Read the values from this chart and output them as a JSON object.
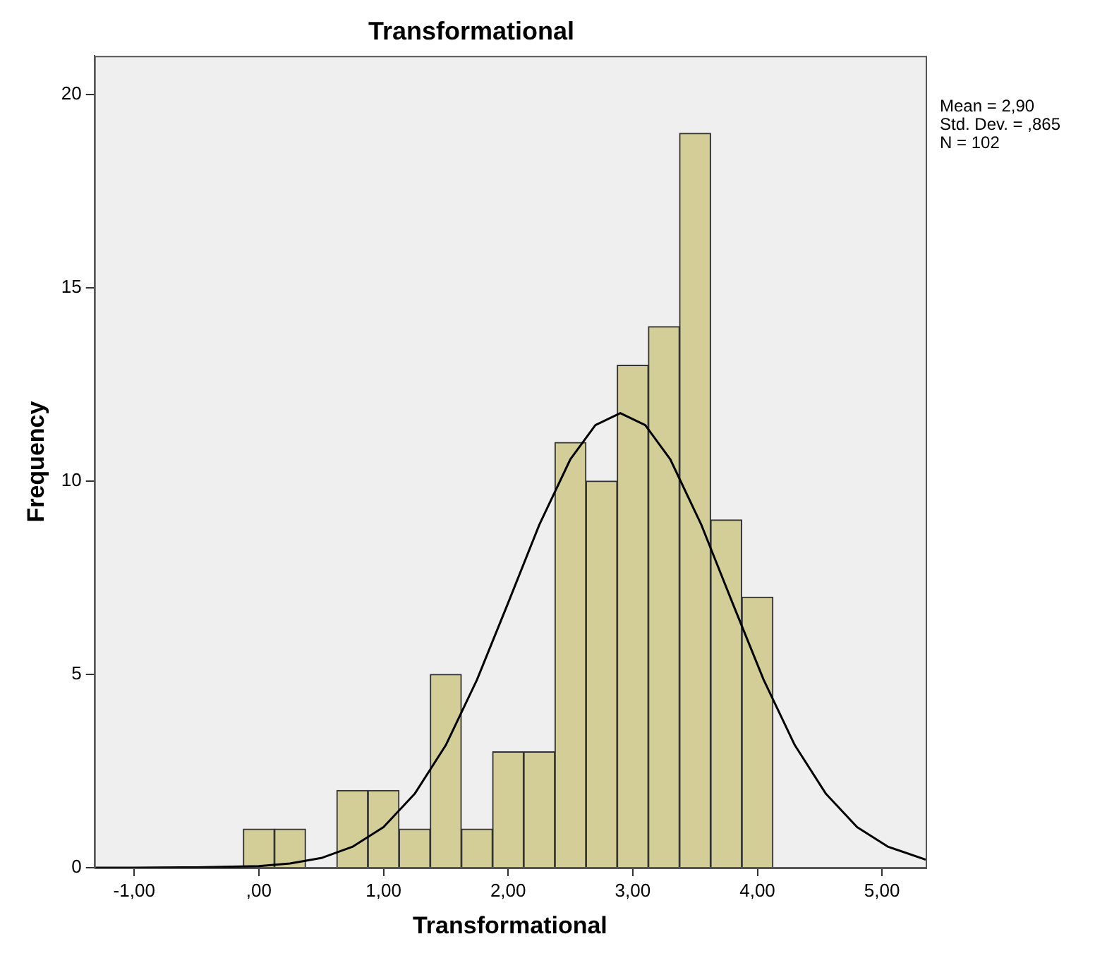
{
  "chart_data": {
    "type": "histogram",
    "title": "Transformational",
    "xlabel": "Transformational",
    "ylabel": "Frequency",
    "bins": [
      -0.125,
      0.125,
      0.375,
      0.625,
      0.875,
      1.125,
      1.375,
      1.625,
      1.875,
      2.125,
      2.375,
      2.625,
      2.875,
      3.125,
      3.375,
      3.625,
      3.875,
      4.125
    ],
    "values": [
      1,
      1,
      0,
      2,
      2,
      1,
      5,
      1,
      3,
      3,
      11,
      10,
      13,
      14,
      19,
      9,
      7
    ],
    "color": "#d3ce97",
    "series": [
      {
        "type": "line",
        "color": "#000000",
        "x": [
          -1.32,
          -1,
          -0.5,
          0,
          0.25,
          0.5,
          0.75,
          1,
          1.25,
          1.5,
          1.75,
          2,
          2.25,
          2.5,
          2.7,
          2.9,
          3.1,
          3.3,
          3.55,
          3.8,
          4.05,
          4.3,
          4.55,
          4.8,
          5.05,
          5.35
        ],
        "values": [
          0,
          0,
          0.01,
          0.04,
          0.11,
          0.25,
          0.54,
          1.05,
          1.91,
          3.17,
          4.86,
          6.85,
          8.87,
          10.57,
          11.45,
          11.76,
          11.45,
          10.57,
          8.87,
          6.85,
          4.86,
          3.17,
          1.91,
          1.05,
          0.54,
          0.21
        ]
      }
    ],
    "marker": "none",
    "line_style": "solid",
    "grid": false,
    "legend": false,
    "xlim": [
      -1.32,
      5.35
    ],
    "ylim": [
      0,
      21
    ],
    "xticks": [
      {
        "value": -1,
        "label": "-1,00"
      },
      {
        "value": 0,
        "label": ",00"
      },
      {
        "value": 1,
        "label": "1,00"
      },
      {
        "value": 2,
        "label": "2,00"
      },
      {
        "value": 3,
        "label": "3,00"
      },
      {
        "value": 4,
        "label": "4,00"
      },
      {
        "value": 5,
        "label": "5,00"
      }
    ],
    "yticks": [
      0,
      5,
      10,
      15,
      20
    ],
    "annotations": [
      "Mean = 2,90",
      "Std. Dev. = ,865",
      "N = 102"
    ]
  }
}
